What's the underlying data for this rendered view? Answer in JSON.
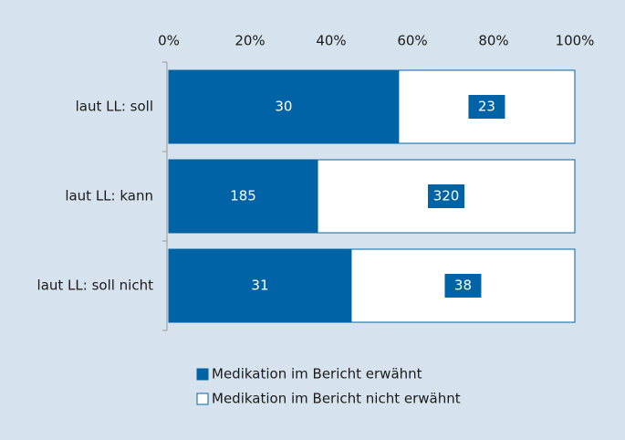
{
  "chart_data": {
    "type": "bar",
    "orientation": "horizontal",
    "stacking": "percent",
    "categories": [
      "laut LL: soll",
      "laut LL: kann",
      "laut LL: soll nicht"
    ],
    "series": [
      {
        "name": "Medikation im Bericht erwähnt",
        "color": "#0063a6",
        "values": [
          30,
          185,
          31
        ]
      },
      {
        "name": "Medikation im Bericht nicht erwähnt",
        "color": "#ffffff",
        "values": [
          23,
          320,
          38
        ]
      }
    ],
    "xlim": [
      0,
      100
    ],
    "xticks": [
      {
        "value": 0,
        "label": "0%"
      },
      {
        "value": 20,
        "label": "20%"
      },
      {
        "value": 40,
        "label": "40%"
      },
      {
        "value": 60,
        "label": "60%"
      },
      {
        "value": 80,
        "label": "80%"
      },
      {
        "value": 100,
        "label": "100%"
      }
    ],
    "legend": "bottom"
  }
}
